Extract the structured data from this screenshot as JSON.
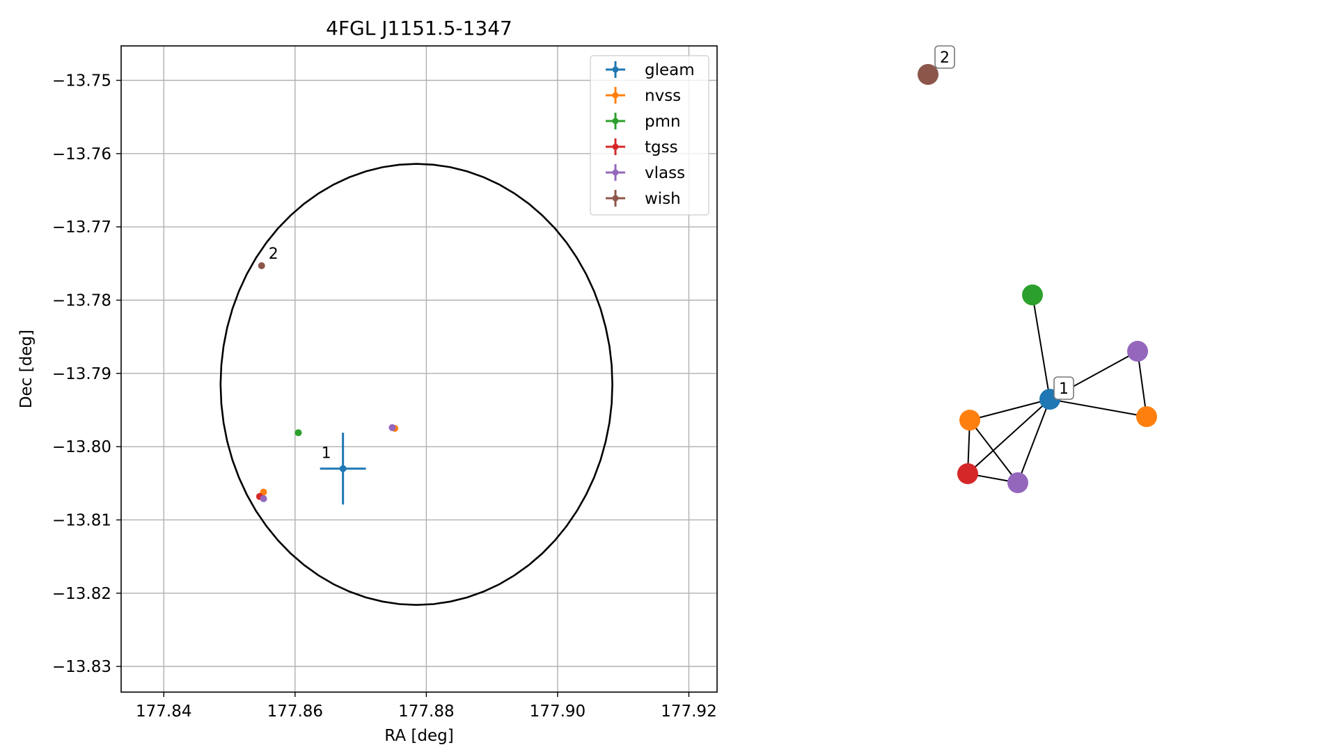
{
  "colors": {
    "gleam": "#1f77b4",
    "nvss": "#ff7f0e",
    "pmn": "#2ca02c",
    "tgss": "#d62728",
    "vlass": "#9467bd",
    "wish": "#8c564b",
    "grid": "#b0b0b0",
    "axes": "#000000",
    "edge": "#000000"
  },
  "chart_data": [
    {
      "type": "scatter",
      "title": "4FGL J1151.5-1347",
      "xlabel": "RA [deg]",
      "ylabel": "Dec [deg]",
      "xlim": [
        177.8335,
        177.9243
      ],
      "ylim": [
        -13.8335,
        -13.7453
      ],
      "xticks": [
        177.84,
        177.86,
        177.88,
        177.9,
        177.92
      ],
      "xtick_labels": [
        "177.84",
        "177.86",
        "177.88",
        "177.90",
        "177.92"
      ],
      "yticks": [
        -13.75,
        -13.76,
        -13.77,
        -13.78,
        -13.79,
        -13.8,
        -13.81,
        -13.82,
        -13.83
      ],
      "ytick_labels": [
        "−13.75",
        "−13.76",
        "−13.77",
        "−13.78",
        "−13.79",
        "−13.80",
        "−13.81",
        "−13.82",
        "−13.83"
      ],
      "grid": true,
      "legend_position": "top-right",
      "ellipse": {
        "center_ra": 177.8785,
        "center_dec": -13.7915,
        "radius_ra": 0.02985,
        "radius_dec": 0.0301
      },
      "series": [
        {
          "name": "gleam",
          "color_key": "gleam",
          "points": [
            {
              "ra": 177.8673,
              "dec": -13.803,
              "ra_err": 0.0035,
              "dec_err": 0.0049
            }
          ]
        },
        {
          "name": "nvss",
          "color_key": "nvss",
          "points": [
            {
              "ra": 177.8552,
              "dec": -13.8062,
              "ra_err": 0,
              "dec_err": 0
            },
            {
              "ra": 177.8752,
              "dec": -13.7975,
              "ra_err": 0,
              "dec_err": 0
            }
          ]
        },
        {
          "name": "pmn",
          "color_key": "pmn",
          "points": [
            {
              "ra": 177.8605,
              "dec": -13.7981,
              "ra_err": 0,
              "dec_err": 0
            }
          ]
        },
        {
          "name": "tgss",
          "color_key": "tgss",
          "points": [
            {
              "ra": 177.8546,
              "dec": -13.8068,
              "ra_err": 0,
              "dec_err": 0
            }
          ]
        },
        {
          "name": "vlass",
          "color_key": "vlass",
          "points": [
            {
              "ra": 177.8552,
              "dec": -13.8071,
              "ra_err": 0,
              "dec_err": 0
            },
            {
              "ra": 177.8748,
              "dec": -13.7974,
              "ra_err": 0,
              "dec_err": 0
            }
          ]
        },
        {
          "name": "wish",
          "color_key": "wish",
          "points": [
            {
              "ra": 177.8549,
              "dec": -13.7753,
              "ra_err": 0,
              "dec_err": 0
            }
          ]
        }
      ],
      "annotations": [
        {
          "text": "1",
          "ra": 177.8673,
          "dec": -13.803
        },
        {
          "text": "2",
          "ra": 177.8549,
          "dec": -13.7753
        }
      ]
    },
    {
      "type": "network",
      "nodes": [
        {
          "id": "gleam",
          "color_key": "gleam",
          "label": "1"
        },
        {
          "id": "nvss_a",
          "color_key": "nvss",
          "label": ""
        },
        {
          "id": "nvss_b",
          "color_key": "nvss",
          "label": ""
        },
        {
          "id": "pmn",
          "color_key": "pmn",
          "label": ""
        },
        {
          "id": "tgss",
          "color_key": "tgss",
          "label": ""
        },
        {
          "id": "vlass_a",
          "color_key": "vlass",
          "label": ""
        },
        {
          "id": "vlass_b",
          "color_key": "vlass",
          "label": ""
        },
        {
          "id": "wish",
          "color_key": "wish",
          "label": "2"
        }
      ],
      "edges": [
        [
          "gleam",
          "pmn"
        ],
        [
          "gleam",
          "vlass_b"
        ],
        [
          "gleam",
          "nvss_b"
        ],
        [
          "gleam",
          "nvss_a"
        ],
        [
          "gleam",
          "tgss"
        ],
        [
          "gleam",
          "vlass_a"
        ],
        [
          "vlass_b",
          "nvss_b"
        ],
        [
          "nvss_a",
          "tgss"
        ],
        [
          "nvss_a",
          "vlass_a"
        ],
        [
          "tgss",
          "vlass_a"
        ]
      ]
    }
  ]
}
